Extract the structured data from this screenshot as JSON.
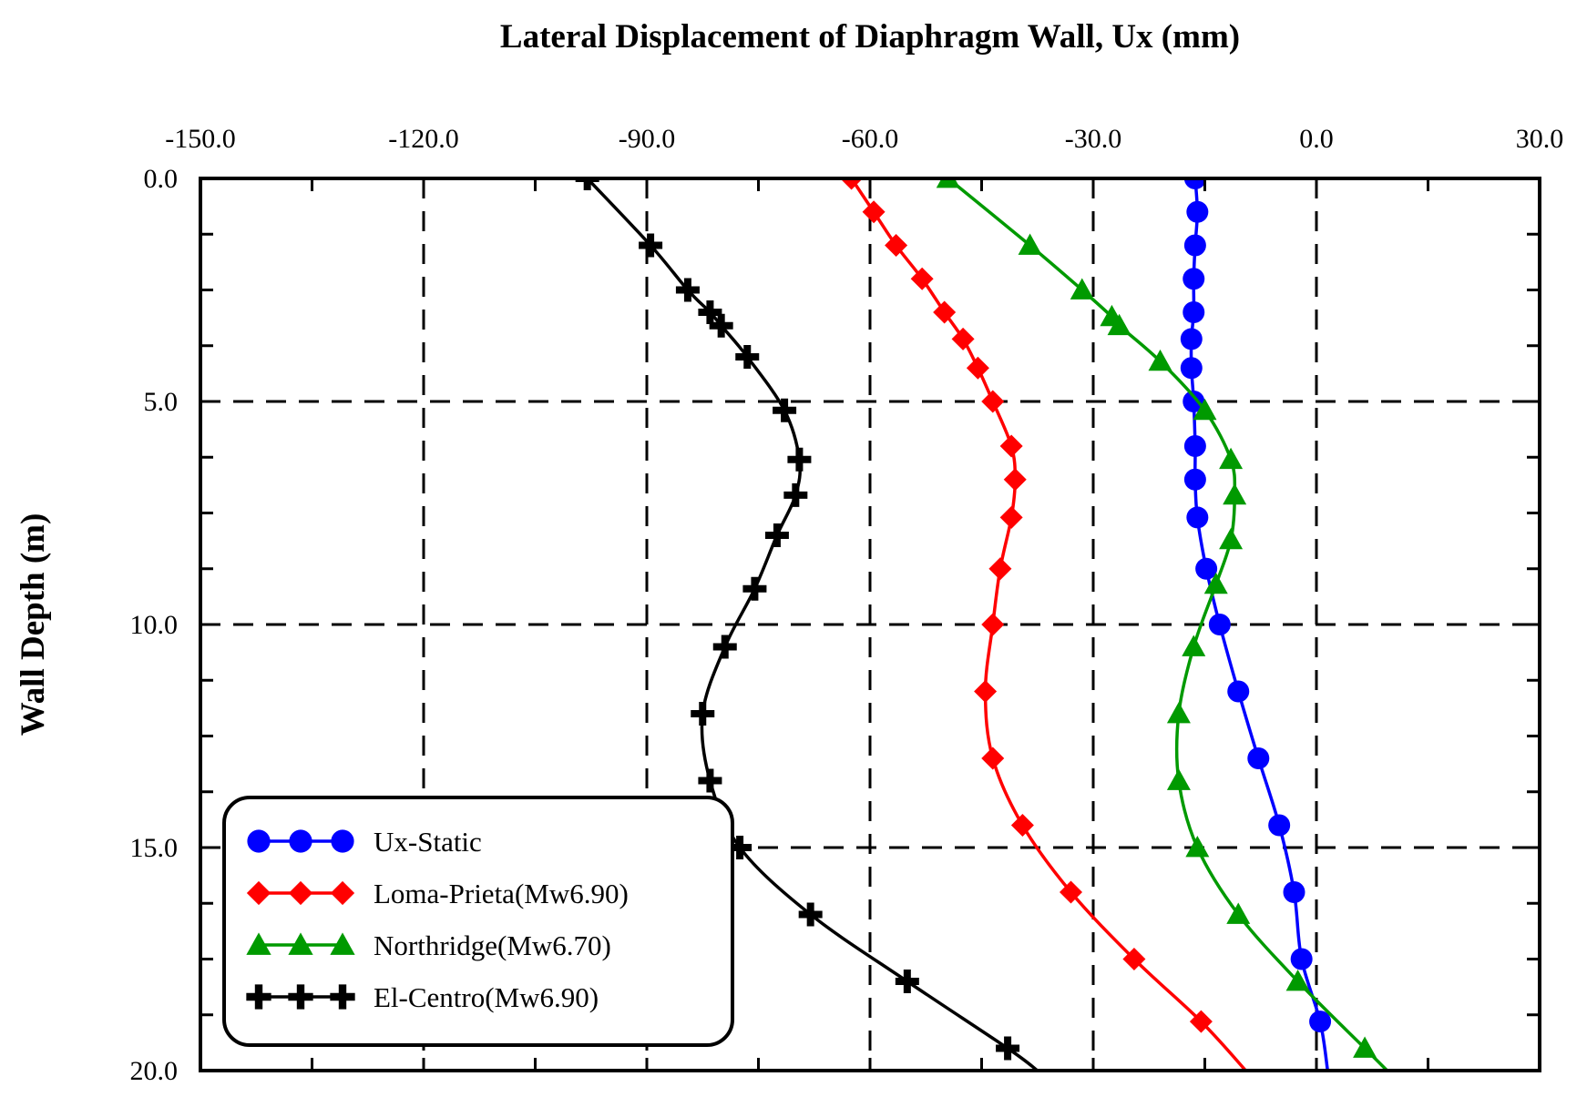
{
  "chart_data": {
    "type": "line",
    "title": "Lateral Displacement of Diaphragm Wall, Ux (mm)",
    "xlabel": "Lateral Displacement of Diaphragm Wall, Ux (mm)",
    "ylabel": "Wall Depth (m)",
    "xlim": [
      -150,
      30
    ],
    "ylim": [
      0,
      20
    ],
    "y_inverted": true,
    "x_axis_position": "top",
    "x_ticks": [
      -150,
      -120,
      -90,
      -60,
      -30,
      0,
      30
    ],
    "x_tick_labels": [
      "-150.0",
      "-120.0",
      "-90.0",
      "-60.0",
      "-30.0",
      "0.0",
      "30.0"
    ],
    "y_ticks": [
      0,
      5,
      10,
      15,
      20
    ],
    "y_tick_labels": [
      "0.0",
      "5.0",
      "10.0",
      "15.0",
      "20.0"
    ],
    "grid": "dashed",
    "legend_position": "bottom-left",
    "series": [
      {
        "name": "Ux-Static",
        "color": "#0000ff",
        "marker": "circle",
        "points": [
          [
            -16.3,
            0.0
          ],
          [
            -16.0,
            0.75
          ],
          [
            -16.3,
            1.5
          ],
          [
            -16.5,
            2.25
          ],
          [
            -16.5,
            3.0
          ],
          [
            -16.8,
            3.6
          ],
          [
            -16.8,
            4.25
          ],
          [
            -16.5,
            5.0
          ],
          [
            -16.3,
            6.0
          ],
          [
            -16.3,
            6.75
          ],
          [
            -16.0,
            7.6
          ],
          [
            -14.8,
            8.75
          ],
          [
            -13.0,
            10.0
          ],
          [
            -10.5,
            11.5
          ],
          [
            -7.8,
            13.0
          ],
          [
            -5.0,
            14.5
          ],
          [
            -3.0,
            16.0
          ],
          [
            -2.0,
            17.5
          ],
          [
            0.5,
            18.9
          ]
        ],
        "curve_end": [
          1.5,
          20.0
        ]
      },
      {
        "name": "Loma-Prieta(Mw6.90)",
        "color": "#ff0000",
        "marker": "diamond",
        "points": [
          [
            -62.5,
            0.0
          ],
          [
            -59.5,
            0.75
          ],
          [
            -56.5,
            1.5
          ],
          [
            -53.0,
            2.25
          ],
          [
            -50.0,
            3.0
          ],
          [
            -47.5,
            3.6
          ],
          [
            -45.5,
            4.25
          ],
          [
            -43.5,
            5.0
          ],
          [
            -41.0,
            6.0
          ],
          [
            -40.5,
            6.75
          ],
          [
            -41.0,
            7.6
          ],
          [
            -42.5,
            8.75
          ],
          [
            -43.5,
            10.0
          ],
          [
            -44.5,
            11.5
          ],
          [
            -43.5,
            13.0
          ],
          [
            -39.5,
            14.5
          ],
          [
            -33.0,
            16.0
          ],
          [
            -24.5,
            17.5
          ],
          [
            -15.5,
            18.9
          ]
        ],
        "curve_end": [
          -9.5,
          20.0
        ]
      },
      {
        "name": "Northridge(Mw6.70)",
        "color": "#009a00",
        "marker": "triangle",
        "points": [
          [
            -49.5,
            0.0
          ],
          [
            -38.5,
            1.5
          ],
          [
            -31.5,
            2.5
          ],
          [
            -27.5,
            3.1
          ],
          [
            -26.5,
            3.3
          ],
          [
            -21.0,
            4.1
          ],
          [
            -15.0,
            5.2
          ],
          [
            -11.5,
            6.3
          ],
          [
            -11.0,
            7.1
          ],
          [
            -11.5,
            8.1
          ],
          [
            -13.5,
            9.1
          ],
          [
            -16.5,
            10.5
          ],
          [
            -18.5,
            12.0
          ],
          [
            -18.5,
            13.5
          ],
          [
            -16.0,
            15.0
          ],
          [
            -10.5,
            16.5
          ],
          [
            -2.5,
            18.0
          ],
          [
            6.5,
            19.5
          ]
        ],
        "curve_end": [
          9.5,
          20.0
        ]
      },
      {
        "name": "El-Centro(Mw6.90)",
        "color": "#000000",
        "marker": "cross",
        "points": [
          [
            -98.0,
            0.0
          ],
          [
            -89.5,
            1.5
          ],
          [
            -84.5,
            2.5
          ],
          [
            -81.5,
            3.0
          ],
          [
            -80.0,
            3.3
          ],
          [
            -76.5,
            4.0
          ],
          [
            -71.5,
            5.2
          ],
          [
            -69.5,
            6.3
          ],
          [
            -70.0,
            7.1
          ],
          [
            -72.5,
            8.0
          ],
          [
            -75.5,
            9.2
          ],
          [
            -79.5,
            10.5
          ],
          [
            -82.5,
            12.0
          ],
          [
            -81.5,
            13.5
          ],
          [
            -77.5,
            15.0
          ],
          [
            -68.0,
            16.5
          ],
          [
            -55.0,
            18.0
          ],
          [
            -41.5,
            19.5
          ]
        ],
        "curve_end": [
          -37.5,
          20.0
        ]
      }
    ]
  }
}
